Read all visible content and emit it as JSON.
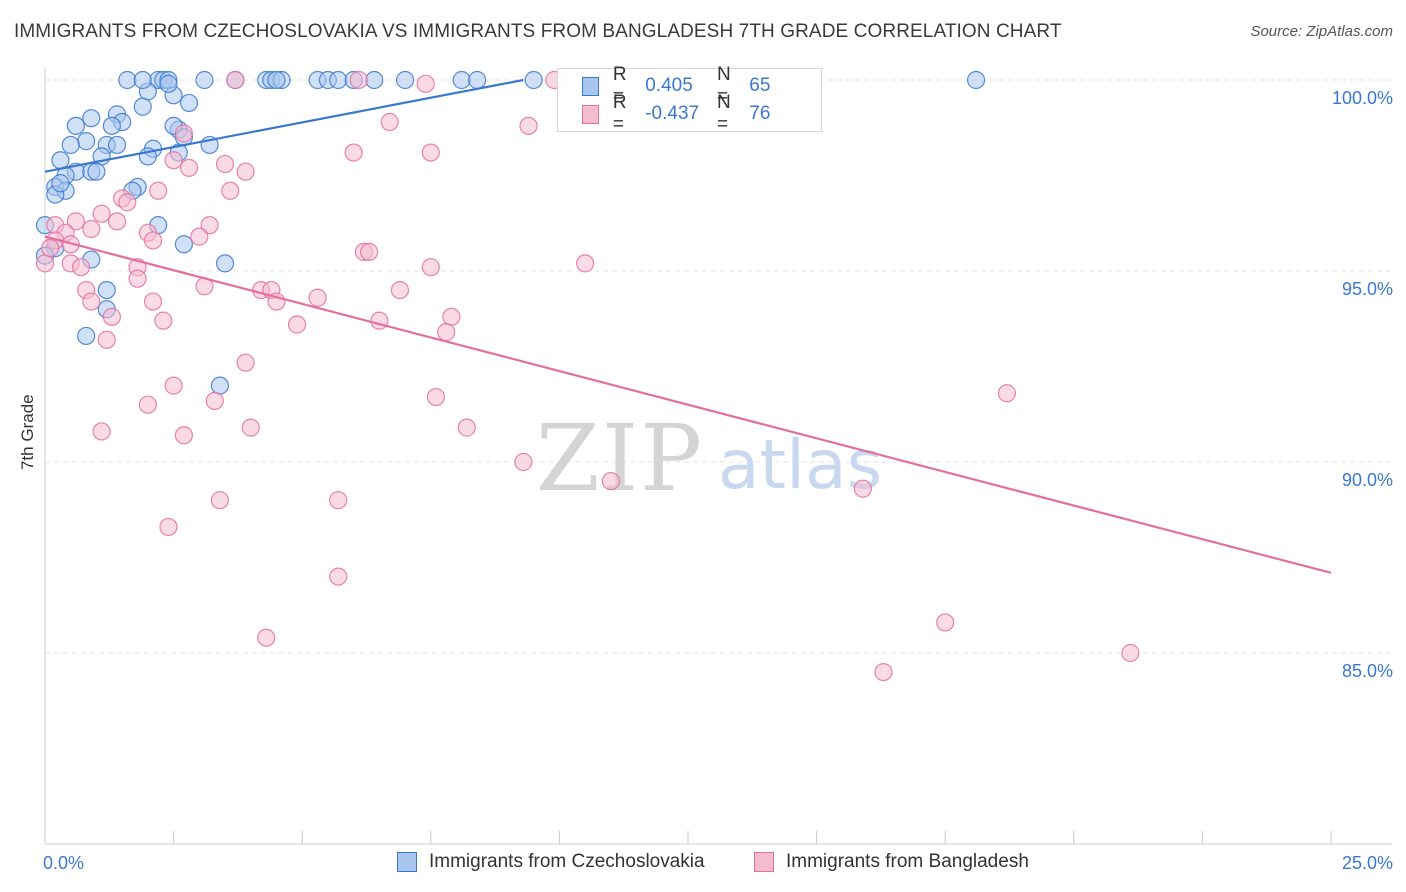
{
  "title": "IMMIGRANTS FROM CZECHOSLOVAKIA VS IMMIGRANTS FROM BANGLADESH 7TH GRADE CORRELATION CHART",
  "source": "Source: ZipAtlas.com",
  "colors": {
    "blue": "#3a78d0",
    "blue_fill": "#a9c6ee",
    "pink": "#e3709c",
    "pink_fill": "#f5bcd0",
    "grid": "#e3e3e3"
  },
  "legend": {
    "rows": [
      {
        "r_label": "R =",
        "r_value": "0.405",
        "n_label": "N =",
        "n_value": "65"
      },
      {
        "r_label": "R =",
        "r_value": "-0.437",
        "n_label": "N =",
        "n_value": "76"
      }
    ]
  },
  "bottom_legend": [
    "Immigrants from Czechoslovakia",
    "Immigrants from Bangladesh"
  ],
  "watermark": {
    "zip": "ZIP",
    "atlas": "atlas"
  },
  "chart_data": {
    "type": "scatter",
    "title": "IMMIGRANTS FROM CZECHOSLOVAKIA VS IMMIGRANTS FROM BANGLADESH 7TH GRADE CORRELATION CHART",
    "xlabel": "",
    "ylabel": "7th Grade",
    "xlim": [
      0,
      25
    ],
    "ylim": [
      80.5,
      100.4
    ],
    "x_tick_labels": [
      "0.0%",
      "25.0%"
    ],
    "y_tick_labels": [
      {
        "value": 100,
        "label": "100.0%"
      },
      {
        "value": 95,
        "label": "95.0%"
      },
      {
        "value": 90,
        "label": "90.0%"
      },
      {
        "value": 85,
        "label": "85.0%"
      }
    ],
    "series": [
      {
        "name": "Immigrants from Czechoslovakia",
        "color": "blue",
        "trend": {
          "x": [
            0.0,
            9.3
          ],
          "y": [
            97.6,
            100.0
          ]
        },
        "points": [
          [
            1.6,
            100.0
          ],
          [
            2.2,
            100.0
          ],
          [
            2.3,
            100.0
          ],
          [
            2.4,
            100.0
          ],
          [
            3.1,
            100.0
          ],
          [
            4.3,
            100.0
          ],
          [
            4.4,
            100.0
          ],
          [
            4.6,
            100.0
          ],
          [
            5.3,
            100.0
          ],
          [
            5.5,
            100.0
          ],
          [
            5.7,
            100.0
          ],
          [
            6.4,
            100.0
          ],
          [
            8.1,
            100.0
          ],
          [
            8.4,
            100.0
          ],
          [
            9.5,
            100.0
          ],
          [
            18.1,
            100.0
          ],
          [
            2.5,
            99.6
          ],
          [
            2.8,
            99.4
          ],
          [
            2.0,
            99.7
          ],
          [
            1.9,
            99.3
          ],
          [
            1.4,
            99.1
          ],
          [
            0.9,
            99.0
          ],
          [
            1.5,
            98.9
          ],
          [
            1.3,
            98.8
          ],
          [
            0.6,
            98.8
          ],
          [
            1.2,
            98.3
          ],
          [
            1.4,
            98.3
          ],
          [
            0.8,
            98.4
          ],
          [
            0.5,
            98.3
          ],
          [
            2.6,
            98.7
          ],
          [
            2.5,
            98.8
          ],
          [
            2.1,
            98.2
          ],
          [
            3.2,
            98.3
          ],
          [
            2.6,
            98.1
          ],
          [
            2.0,
            98.0
          ],
          [
            1.1,
            98.0
          ],
          [
            0.3,
            97.9
          ],
          [
            0.6,
            97.6
          ],
          [
            0.9,
            97.6
          ],
          [
            1.0,
            97.6
          ],
          [
            0.4,
            97.5
          ],
          [
            0.2,
            97.2
          ],
          [
            0.4,
            97.1
          ],
          [
            0.2,
            97.0
          ],
          [
            1.8,
            97.2
          ],
          [
            1.7,
            97.1
          ],
          [
            0.0,
            96.2
          ],
          [
            2.2,
            96.2
          ],
          [
            2.7,
            95.7
          ],
          [
            0.9,
            95.3
          ],
          [
            3.5,
            95.2
          ],
          [
            1.2,
            94.5
          ],
          [
            1.2,
            94.0
          ],
          [
            0.8,
            93.3
          ],
          [
            3.4,
            92.0
          ],
          [
            0.2,
            95.6
          ],
          [
            0.0,
            95.4
          ],
          [
            3.7,
            100.0
          ],
          [
            4.5,
            100.0
          ],
          [
            6.0,
            100.0
          ],
          [
            7.0,
            100.0
          ],
          [
            1.9,
            100.0
          ],
          [
            2.4,
            99.9
          ],
          [
            0.3,
            97.3
          ],
          [
            2.7,
            98.5
          ]
        ]
      },
      {
        "name": "Immigrants from Bangladesh",
        "color": "pink",
        "trend": {
          "x": [
            0.0,
            25.0
          ],
          "y": [
            95.9,
            87.1
          ]
        },
        "points": [
          [
            3.7,
            100.0
          ],
          [
            6.1,
            100.0
          ],
          [
            7.4,
            99.9
          ],
          [
            9.9,
            100.0
          ],
          [
            6.7,
            98.9
          ],
          [
            9.4,
            98.8
          ],
          [
            2.7,
            98.6
          ],
          [
            6.0,
            98.1
          ],
          [
            7.5,
            98.1
          ],
          [
            3.5,
            97.8
          ],
          [
            2.5,
            97.9
          ],
          [
            2.8,
            97.7
          ],
          [
            3.9,
            97.6
          ],
          [
            3.6,
            97.1
          ],
          [
            2.2,
            97.1
          ],
          [
            1.5,
            96.9
          ],
          [
            1.6,
            96.8
          ],
          [
            1.1,
            96.5
          ],
          [
            1.4,
            96.3
          ],
          [
            0.6,
            96.3
          ],
          [
            0.2,
            96.2
          ],
          [
            3.2,
            96.2
          ],
          [
            2.0,
            96.0
          ],
          [
            0.9,
            96.1
          ],
          [
            0.4,
            96.0
          ],
          [
            3.0,
            95.9
          ],
          [
            0.2,
            95.8
          ],
          [
            0.5,
            95.7
          ],
          [
            6.2,
            95.5
          ],
          [
            6.3,
            95.5
          ],
          [
            10.5,
            95.2
          ],
          [
            0.5,
            95.2
          ],
          [
            0.7,
            95.1
          ],
          [
            1.8,
            95.1
          ],
          [
            7.5,
            95.1
          ],
          [
            1.8,
            94.8
          ],
          [
            3.1,
            94.6
          ],
          [
            4.2,
            94.5
          ],
          [
            4.4,
            94.5
          ],
          [
            6.9,
            94.5
          ],
          [
            0.8,
            94.5
          ],
          [
            5.3,
            94.3
          ],
          [
            0.9,
            94.2
          ],
          [
            2.1,
            94.2
          ],
          [
            4.5,
            94.2
          ],
          [
            1.3,
            93.8
          ],
          [
            2.3,
            93.7
          ],
          [
            4.9,
            93.6
          ],
          [
            6.5,
            93.7
          ],
          [
            7.9,
            93.8
          ],
          [
            7.8,
            93.4
          ],
          [
            1.2,
            93.2
          ],
          [
            3.9,
            92.6
          ],
          [
            2.5,
            92.0
          ],
          [
            18.7,
            91.8
          ],
          [
            7.6,
            91.7
          ],
          [
            3.3,
            91.6
          ],
          [
            2.0,
            91.5
          ],
          [
            4.0,
            90.9
          ],
          [
            8.2,
            90.9
          ],
          [
            1.1,
            90.8
          ],
          [
            2.7,
            90.7
          ],
          [
            9.3,
            90.0
          ],
          [
            11.0,
            89.5
          ],
          [
            15.9,
            89.3
          ],
          [
            5.7,
            89.0
          ],
          [
            3.4,
            89.0
          ],
          [
            2.4,
            88.3
          ],
          [
            5.7,
            87.0
          ],
          [
            17.5,
            85.8
          ],
          [
            4.3,
            85.4
          ],
          [
            21.1,
            85.0
          ],
          [
            16.3,
            84.5
          ],
          [
            0.0,
            95.2
          ],
          [
            0.1,
            95.6
          ],
          [
            2.1,
            95.8
          ]
        ]
      }
    ]
  }
}
